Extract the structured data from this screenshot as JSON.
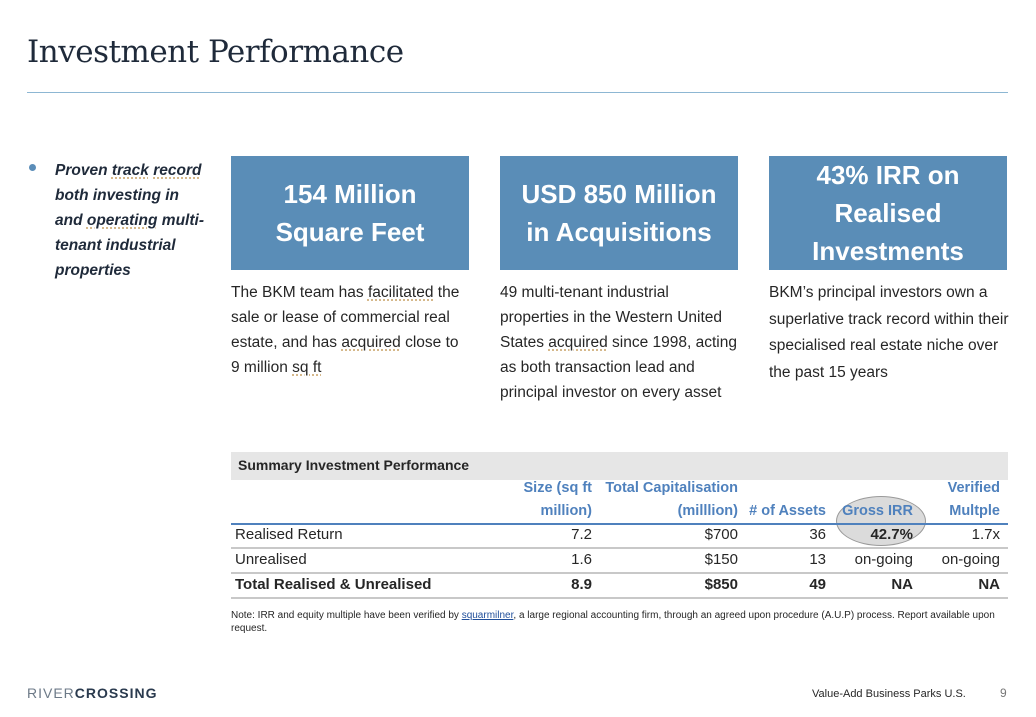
{
  "title": "Investment Performance",
  "bullet": {
    "text_parts": [
      "Proven ",
      "track",
      " ",
      "record",
      " both investing in and ",
      "operating",
      " multi-tenant industrial properties"
    ]
  },
  "boxes": [
    {
      "headline": "154 Million Square Feet",
      "description_parts": [
        "The BKM team has ",
        "facilitated",
        " the sale or lease of commercial real estate, and has ",
        "acquired",
        " close to 9 million ",
        "sq ft"
      ]
    },
    {
      "headline": "USD 850 Million in Acquisitions",
      "description_parts": [
        "49 multi-tenant industrial properties in the Western United States ",
        "acquired",
        " since 1998, acting as both transaction lead and principal investor on every asset"
      ]
    },
    {
      "headline": "43% IRR on Realised Investments",
      "description": "BKM’s principal investors own a superlative track record within their specialised real estate niche over the past 15 years"
    }
  ],
  "table": {
    "title": "Summary Investment Performance",
    "columns": [
      "Size (sq ft million)",
      "Total Capitalisation (milllion)",
      "# of Assets",
      "Gross IRR",
      "Verified Multple"
    ],
    "column_lines": [
      [
        "Size (sq ft",
        "million)"
      ],
      [
        "Total Capitalisation",
        "(milllion)"
      ],
      [
        "",
        "# of Assets"
      ],
      [
        "",
        "Gross IRR"
      ],
      [
        "Verified",
        "Multple"
      ]
    ],
    "rows": [
      {
        "label": "Realised Return",
        "values": [
          "7.2",
          "$700",
          "36",
          "42.7%",
          "1.7x"
        ]
      },
      {
        "label": "Unrealised",
        "values": [
          "1.6",
          "$150",
          "13",
          "on-going",
          "on-going"
        ]
      },
      {
        "label": "Total Realised & Unrealised",
        "values": [
          "8.9",
          "$850",
          "49",
          "NA",
          "NA"
        ]
      }
    ]
  },
  "note": {
    "before": "Note: IRR and equity multiple have been verified by ",
    "link": "squarmilner",
    "after": ", a large regional accounting firm, through an agreed upon procedure (A.U.P) process. Report available upon request."
  },
  "footer": {
    "logo_light": "RIVER",
    "logo_bold": "CROSSING",
    "text": "Value-Add Business Parks U.S.",
    "page": "9"
  },
  "colors": {
    "accent": "#5a8db7",
    "header_text": "#4f81bd",
    "title": "#1f2a3a"
  }
}
